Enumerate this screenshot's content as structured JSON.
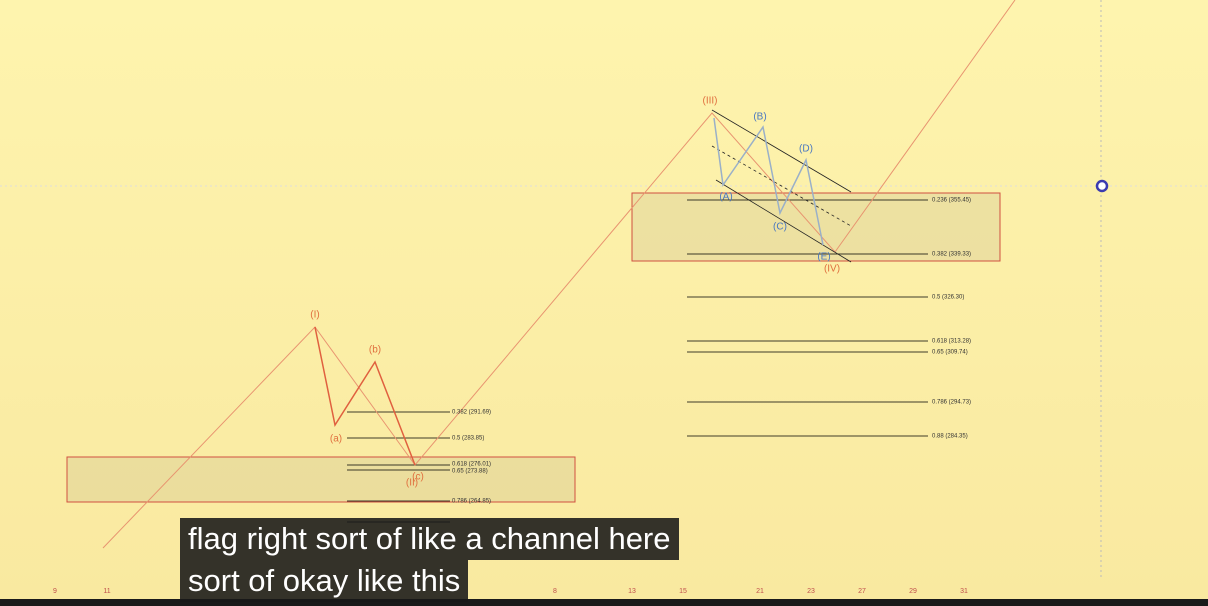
{
  "wave_labels": {
    "red": [
      "(I)",
      "(a)",
      "(b)",
      "(c)",
      "(II)",
      "(III)",
      "(IV)"
    ],
    "blue": [
      "(A)",
      "(B)",
      "(C)",
      "(D)",
      "(E)"
    ]
  },
  "fib_left": [
    "0.382 (291.69)",
    "0.5 (283.85)",
    "0.618 (276.01)",
    "0.65 (273.88)",
    "0.786 (264.85)"
  ],
  "fib_right": [
    "0.236 (355.45)",
    "0.382 (339.33)",
    "0.5 (326.30)",
    "0.618 (313.28)",
    "0.65 (309.74)",
    "0.786 (294.73)",
    "0.88 (284.35)"
  ],
  "x_axis_labels": [
    "9",
    "11",
    "8",
    "13",
    "15",
    "21",
    "23",
    "27",
    "29",
    "31"
  ],
  "caption": {
    "lines": [
      "flag right sort of like a channel here",
      "sort of okay like this"
    ]
  }
}
